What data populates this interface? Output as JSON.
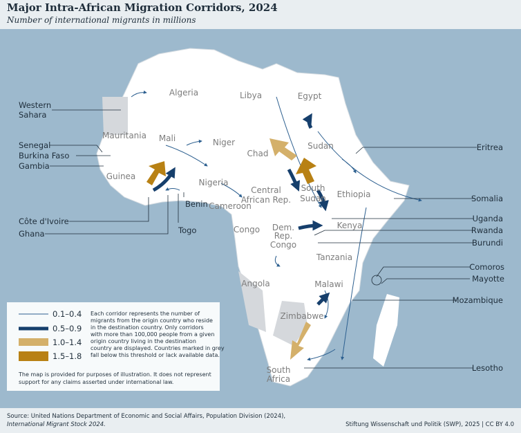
{
  "header": {
    "title": "Major Intra-African Migration Corridors, 2024",
    "subtitle": "Number of international migrants in millions"
  },
  "map": {
    "country_labels": [
      "Algeria",
      "Libya",
      "Egypt",
      "Mauritania",
      "Mali",
      "Niger",
      "Chad",
      "Sudan",
      "Guinea",
      "Nigeria",
      [
        "Central",
        "African Rep."
      ],
      [
        "South",
        "Sudan"
      ],
      "Ethiopia",
      "Cameroon",
      "Congo",
      [
        "Dem.",
        "Rep.",
        "Congo"
      ],
      "Kenya",
      "Tanzania",
      "Angola",
      "Malawi",
      "Zimbabwe",
      [
        "South",
        "Africa"
      ]
    ],
    "callouts": [
      [
        "Western",
        "Sahara"
      ],
      "Senegal",
      "Burkina Faso",
      "Gambia",
      "Côte d'Ivoire",
      "Ghana",
      "Benin",
      "Togo",
      "Eritrea",
      "Somalia",
      "Uganda",
      "Rwanda",
      "Burundi",
      "Comoros",
      "Mayotte",
      "Mozambique",
      "Lesotho"
    ]
  },
  "legend": {
    "items": [
      "0.1–0.4",
      "0.5–0.9",
      "1.0–1.4",
      "1.5–1.8"
    ],
    "note": [
      "Each corridor represents the number of",
      "migrants from the origin country who reside",
      "in the destination country. Only corridors",
      "with more than 100,000 people from a given",
      "origin country living in the destination",
      "country are displayed. Countries marked in grey",
      "fall below this threshold or lack available data."
    ]
  },
  "disclaimer": [
    "The map is provided for purposes of illustration. It does not represent",
    "support for any claims asserted under international law."
  ],
  "footer": {
    "source": "Source: United Nations Department of Economic and Social Affairs, Population Division (2024),",
    "source_title": "International Migrant Stock 2024.",
    "credit": "Stiftung Wissenschaft und Politik (SWP), 2025 | CC BY 4.0"
  }
}
